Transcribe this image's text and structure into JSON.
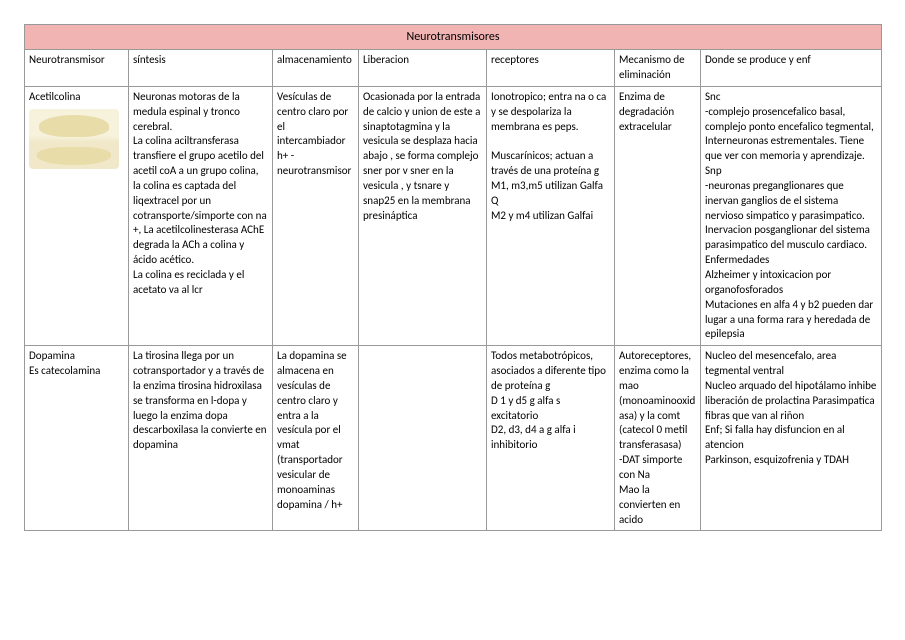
{
  "table": {
    "title": "Neurotransmisores",
    "headers": {
      "nt": "Neurotransmisor",
      "sin": "síntesis",
      "alm": "almacenamiento",
      "lib": "Liberacion",
      "rec": "receptores",
      "mec": "Mecanismo de eliminación",
      "prod": "Donde se produce y enf"
    },
    "rows": [
      {
        "nt": "Acetilcolina",
        "sin": "Neuronas motoras de la medula espinal y tronco cerebral.\nLa colina aciltransferasa transfiere el grupo acetilo del acetil coA a un grupo colina, la colina es captada del liqextracel por un cotransporte/simporte con na +, La acetilcolinesterasa AChE  degrada la ACh a colina y ácido acético.\nLa colina es reciclada y el acetato va al lcr",
        "alm": "Vesículas de centro claro por el intercambiador h+ - neurotransmisor",
        "lib": "Ocasionada por la entrada de calcio y union de este a sinaptotagmina y la vesicula se desplaza hacia abajo , se forma complejo sner por v sner en la vesicula , y tsnare y snap25 en la membrana presináptica",
        "rec": "Ionotropico; entra na o ca y se despolariza la membrana es peps.\n\nMuscarínicos; actuan a través de una proteína g M1, m3,m5 utilizan Galfa Q\nM2 y m4 utilizan Galfai",
        "mec": "Enzima de degradación extracelular",
        "prod": "Snc\n-complejo prosencefalico basal, complejo ponto encefalico tegmental,\nInterneuronas estrementales. Tiene que ver con memoria y aprendizaje.\nSnp\n-neuronas preganglionares que inervan ganglios de el sistema nervioso simpatico y parasimpatico.\nInervacion posganglionar del sistema parasimpatico del musculo cardiaco.\nEnfermedades\nAlzheimer y intoxicacion por organofosforados\nMutaciones en alfa 4 y b2 pueden dar lugar a una forma rara y heredada de epilepsia"
      },
      {
        "nt": "Dopamina\nEs catecolamina",
        "sin": "La tirosina llega por un cotransportador y a través de la enzima tirosina hidroxilasa se transforma en l-dopa y luego la enzima dopa descarboxilasa la convierte en dopamina",
        "alm": "La dopamina se almacena en vesículas de centro claro y entra a la vesícula por el vmat (transportador vesicular de monoaminas dopamina / h+",
        "lib": "",
        "rec": "Todos metabotrópicos, asociados a diferente tipo de proteína g\nD 1 y d5  g alfa s excitatorio\nD2, d3, d4 a g alfa i inhibitorio",
        "mec": "Autoreceptores, enzima como la mao (monoaminooxidasa) y la comt (catecol 0 metil transferasasa)\n-DAT simporte con Na\nMao  la convierten en acido",
        "prod": "Nucleo del mesencefalo, area tegmental ventral\nNucleo arquado del hipotálamo inhibe liberación de prolactina Parasimpatica fibras que van al riñon\nEnf; Si falla hay disfuncion en al atencion\nParkinson, esquizofrenia y TDAH"
      }
    ]
  },
  "colors": {
    "title_bg": "#f2b3b3",
    "border": "#999999",
    "page_bg": "#ffffff",
    "text": "#000000"
  },
  "typography": {
    "body_fontsize": 11,
    "title_fontsize": 12,
    "family": "Calibri"
  }
}
